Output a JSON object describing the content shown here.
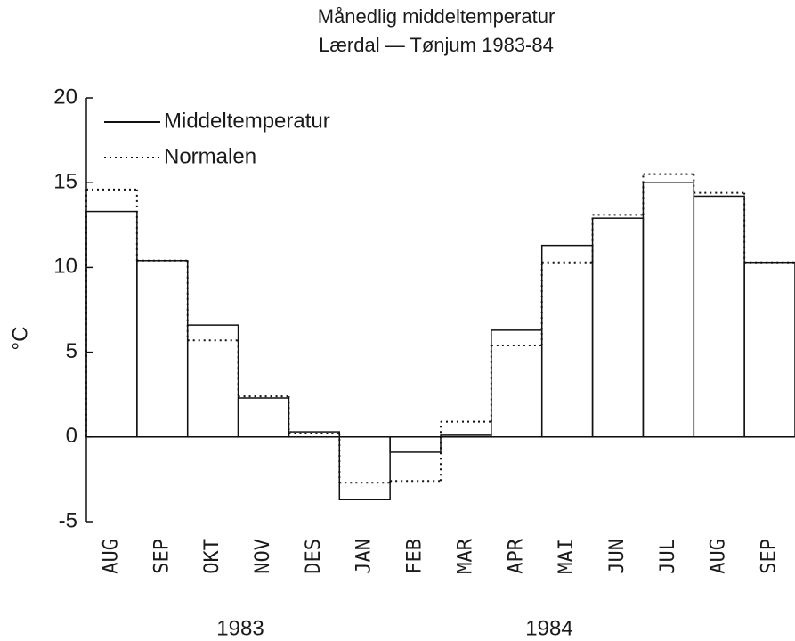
{
  "chart_data": {
    "type": "step-bar",
    "title": "Månedlig middeltemperatur",
    "subtitle": "Lærdal — Tønjum 1983-84",
    "y_label": "°C",
    "categories": [
      "AUG",
      "SEP",
      "OKT",
      "NOV",
      "DES",
      "JAN",
      "FEB",
      "MAR",
      "APR",
      "MAI",
      "JUN",
      "JUL",
      "AUG",
      "SEP"
    ],
    "series": [
      {
        "name": "Middeltemperatur",
        "color": "#111111",
        "style": "solid",
        "values": [
          13.3,
          10.4,
          6.6,
          2.3,
          0.3,
          -3.7,
          -0.9,
          0.1,
          6.3,
          11.3,
          12.9,
          15.0,
          14.2,
          10.3
        ]
      },
      {
        "name": "Normalen",
        "color": "#111111",
        "style": "dotted",
        "values": [
          14.6,
          10.4,
          5.7,
          2.4,
          0.2,
          -2.7,
          -2.6,
          0.9,
          5.4,
          10.3,
          13.1,
          15.5,
          14.4,
          10.3
        ]
      }
    ],
    "annotations": [
      "1983",
      "1984"
    ],
    "ylim": [
      -5,
      20
    ],
    "yticks": [
      -5,
      0,
      5,
      10,
      15,
      20
    ],
    "legend": "upper left"
  }
}
